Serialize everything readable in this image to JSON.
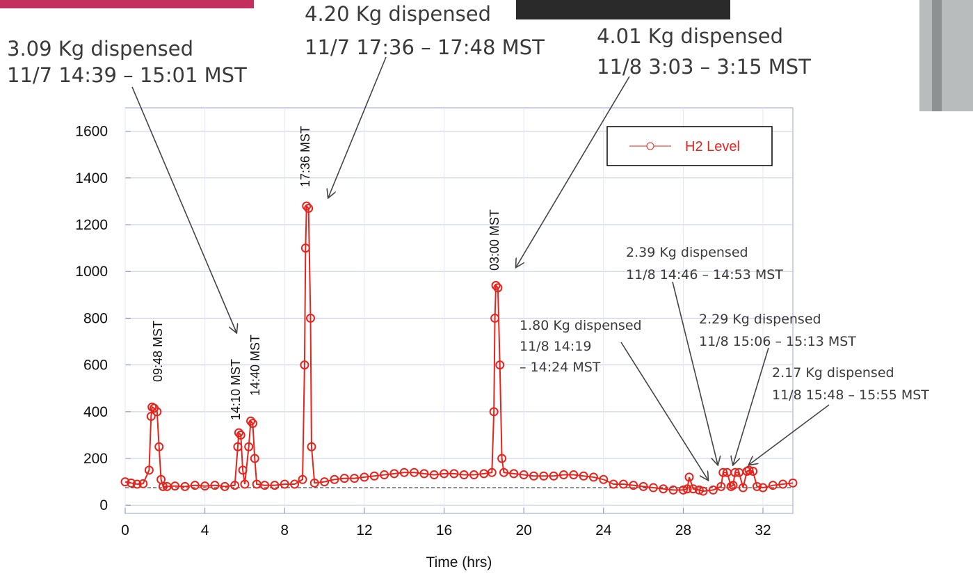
{
  "chart_data": {
    "type": "line",
    "x_label": "Time (hrs)",
    "x": [
      0,
      0.3,
      0.6,
      0.9,
      1.2,
      1.3,
      1.35,
      1.45,
      1.6,
      1.7,
      1.8,
      1.9,
      2.1,
      2.5,
      3,
      3.5,
      4,
      4.5,
      5,
      5.5,
      5.65,
      5.7,
      5.8,
      5.9,
      6.0,
      6.2,
      6.3,
      6.4,
      6.5,
      6.6,
      7,
      7.5,
      8,
      8.5,
      8.9,
      9.0,
      9.05,
      9.1,
      9.2,
      9.3,
      9.35,
      9.5,
      10,
      10.5,
      11,
      11.5,
      12,
      12.5,
      13,
      13.5,
      14,
      14.5,
      15,
      15.5,
      16,
      16.5,
      17,
      17.5,
      18,
      18.4,
      18.5,
      18.55,
      18.6,
      18.7,
      18.8,
      18.9,
      19,
      19.5,
      20,
      20.5,
      21,
      21.5,
      22,
      22.5,
      23,
      23.5,
      24,
      24.5,
      25,
      25.5,
      26,
      26.5,
      27,
      27.5,
      28,
      28.2,
      28.3,
      28.5,
      28.8,
      29,
      29.5,
      29.9,
      30,
      30.2,
      30.4,
      30.5,
      30.6,
      30.8,
      31,
      31.2,
      31.3,
      31.5,
      31.7,
      32,
      32.5,
      33,
      33.5
    ],
    "series": [
      {
        "name": "H2 Level",
        "color": "#e8231b",
        "values": [
          100,
          95,
          90,
          92,
          150,
          380,
          420,
          415,
          400,
          250,
          110,
          80,
          80,
          82,
          80,
          85,
          82,
          85,
          80,
          85,
          250,
          310,
          300,
          150,
          90,
          250,
          360,
          350,
          200,
          90,
          85,
          85,
          90,
          90,
          110,
          600,
          1100,
          1280,
          1270,
          800,
          250,
          95,
          100,
          110,
          115,
          115,
          120,
          125,
          130,
          135,
          140,
          140,
          135,
          130,
          135,
          135,
          130,
          130,
          135,
          140,
          400,
          800,
          940,
          930,
          600,
          200,
          140,
          135,
          130,
          125,
          125,
          125,
          130,
          130,
          125,
          120,
          110,
          90,
          90,
          85,
          80,
          75,
          70,
          65,
          65,
          70,
          120,
          70,
          65,
          60,
          65,
          80,
          140,
          140,
          80,
          85,
          140,
          140,
          75,
          145,
          150,
          145,
          80,
          75,
          85,
          90,
          95
        ]
      }
    ],
    "baseline": 75,
    "xlim": [
      0,
      33.5
    ],
    "ylim": [
      -35,
      1700
    ],
    "xticks": [
      0,
      4,
      8,
      12,
      16,
      20,
      24,
      28,
      32
    ],
    "yticks": [
      0,
      200,
      400,
      600,
      800,
      1000,
      1200,
      1400,
      1600
    ],
    "grid": true,
    "legend": "upper right",
    "peak_labels": [
      "09:48 MST",
      "14:10 MST",
      "14:40 MST",
      "17:36 MST",
      "03:00 MST"
    ],
    "annotations": [
      {
        "lines": [
          "3.09 Kg dispensed",
          "11/7 14:39 – 15:01 MST"
        ]
      },
      {
        "lines": [
          "4.20 Kg dispensed",
          "11/7 17:36 – 17:48 MST"
        ]
      },
      {
        "lines": [
          "4.01 Kg dispensed",
          "11/8 3:03 – 3:15 MST"
        ]
      },
      {
        "lines": [
          "1.80 Kg dispensed",
          "11/8 14:19",
          "– 14:24 MST"
        ]
      },
      {
        "lines": [
          "2.39 Kg dispensed",
          "11/8 14:46 – 14:53 MST"
        ]
      },
      {
        "lines": [
          "2.29 Kg dispensed",
          "11/8 15:06 – 15:13 MST"
        ]
      },
      {
        "lines": [
          "2.17 Kg dispensed",
          "11/8 15:48 – 15:55 MST"
        ]
      }
    ]
  }
}
